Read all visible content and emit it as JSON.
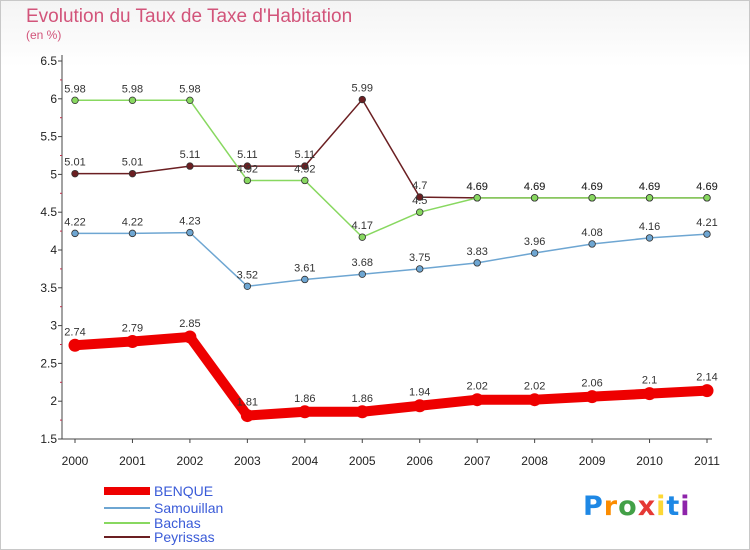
{
  "chart_data": {
    "type": "line",
    "title": "Evolution du Taux de Taxe d'Habitation",
    "unit_label": "(en %)",
    "x": [
      "2000",
      "2001",
      "2002",
      "2003",
      "2004",
      "2005",
      "2006",
      "2007",
      "2008",
      "2009",
      "2010",
      "2011"
    ],
    "ylim": [
      1.5,
      6.5
    ],
    "yticks": [
      "1.5",
      "2",
      "2.5",
      "3",
      "3.5",
      "4",
      "4.5",
      "5",
      "5.5",
      "6",
      "6.5"
    ],
    "grid": false,
    "legend_position": "bottom-left",
    "series": [
      {
        "name": "Peyrissas",
        "color": "#6b1f22",
        "values": [
          5.01,
          5.01,
          5.11,
          5.11,
          5.11,
          5.99,
          4.7,
          4.69,
          4.69,
          4.69,
          4.69,
          4.69
        ],
        "labels": [
          "5.01",
          "5.01",
          "5.11",
          "5.11",
          "5.11",
          "5.99",
          "4.7",
          "4.69",
          "4.69",
          "4.69",
          "4.69",
          "4.69"
        ]
      },
      {
        "name": "Bachas",
        "color": "#88d860",
        "values": [
          5.98,
          5.98,
          5.98,
          4.92,
          4.92,
          4.17,
          4.5,
          4.69,
          4.69,
          4.69,
          4.69,
          4.69
        ],
        "labels": [
          "5.98",
          "5.98",
          "5.98",
          "4.92",
          "4.92",
          "4.17",
          "4.5",
          "4.69",
          "4.69",
          "4.69",
          "4.69",
          "4.69"
        ]
      },
      {
        "name": "Samouillan",
        "color": "#6ea6d2",
        "values": [
          4.22,
          4.22,
          4.23,
          3.52,
          3.61,
          3.68,
          3.75,
          3.83,
          3.96,
          4.08,
          4.16,
          4.21
        ],
        "labels": [
          "4.22",
          "4.22",
          "4.23",
          "3.52",
          "3.61",
          "3.68",
          "3.75",
          "3.83",
          "3.96",
          "4.08",
          "4.16",
          "4.21"
        ]
      },
      {
        "name": "BENQUE",
        "color": "#ee0000",
        "values": [
          2.74,
          2.79,
          2.85,
          1.81,
          1.86,
          1.86,
          1.94,
          2.02,
          2.02,
          2.06,
          2.1,
          2.14
        ],
        "labels": [
          "2.74",
          "2.79",
          "2.85",
          "1.81",
          "1.86",
          "1.86",
          "1.94",
          "2.02",
          "2.02",
          "2.06",
          "2.1",
          "2.14"
        ]
      }
    ],
    "legend": [
      "BENQUE",
      "Samouillan",
      "Bachas",
      "Peyrissas"
    ]
  },
  "logo_text": [
    "P",
    "r",
    "o",
    "x",
    "i",
    "t",
    "i"
  ]
}
